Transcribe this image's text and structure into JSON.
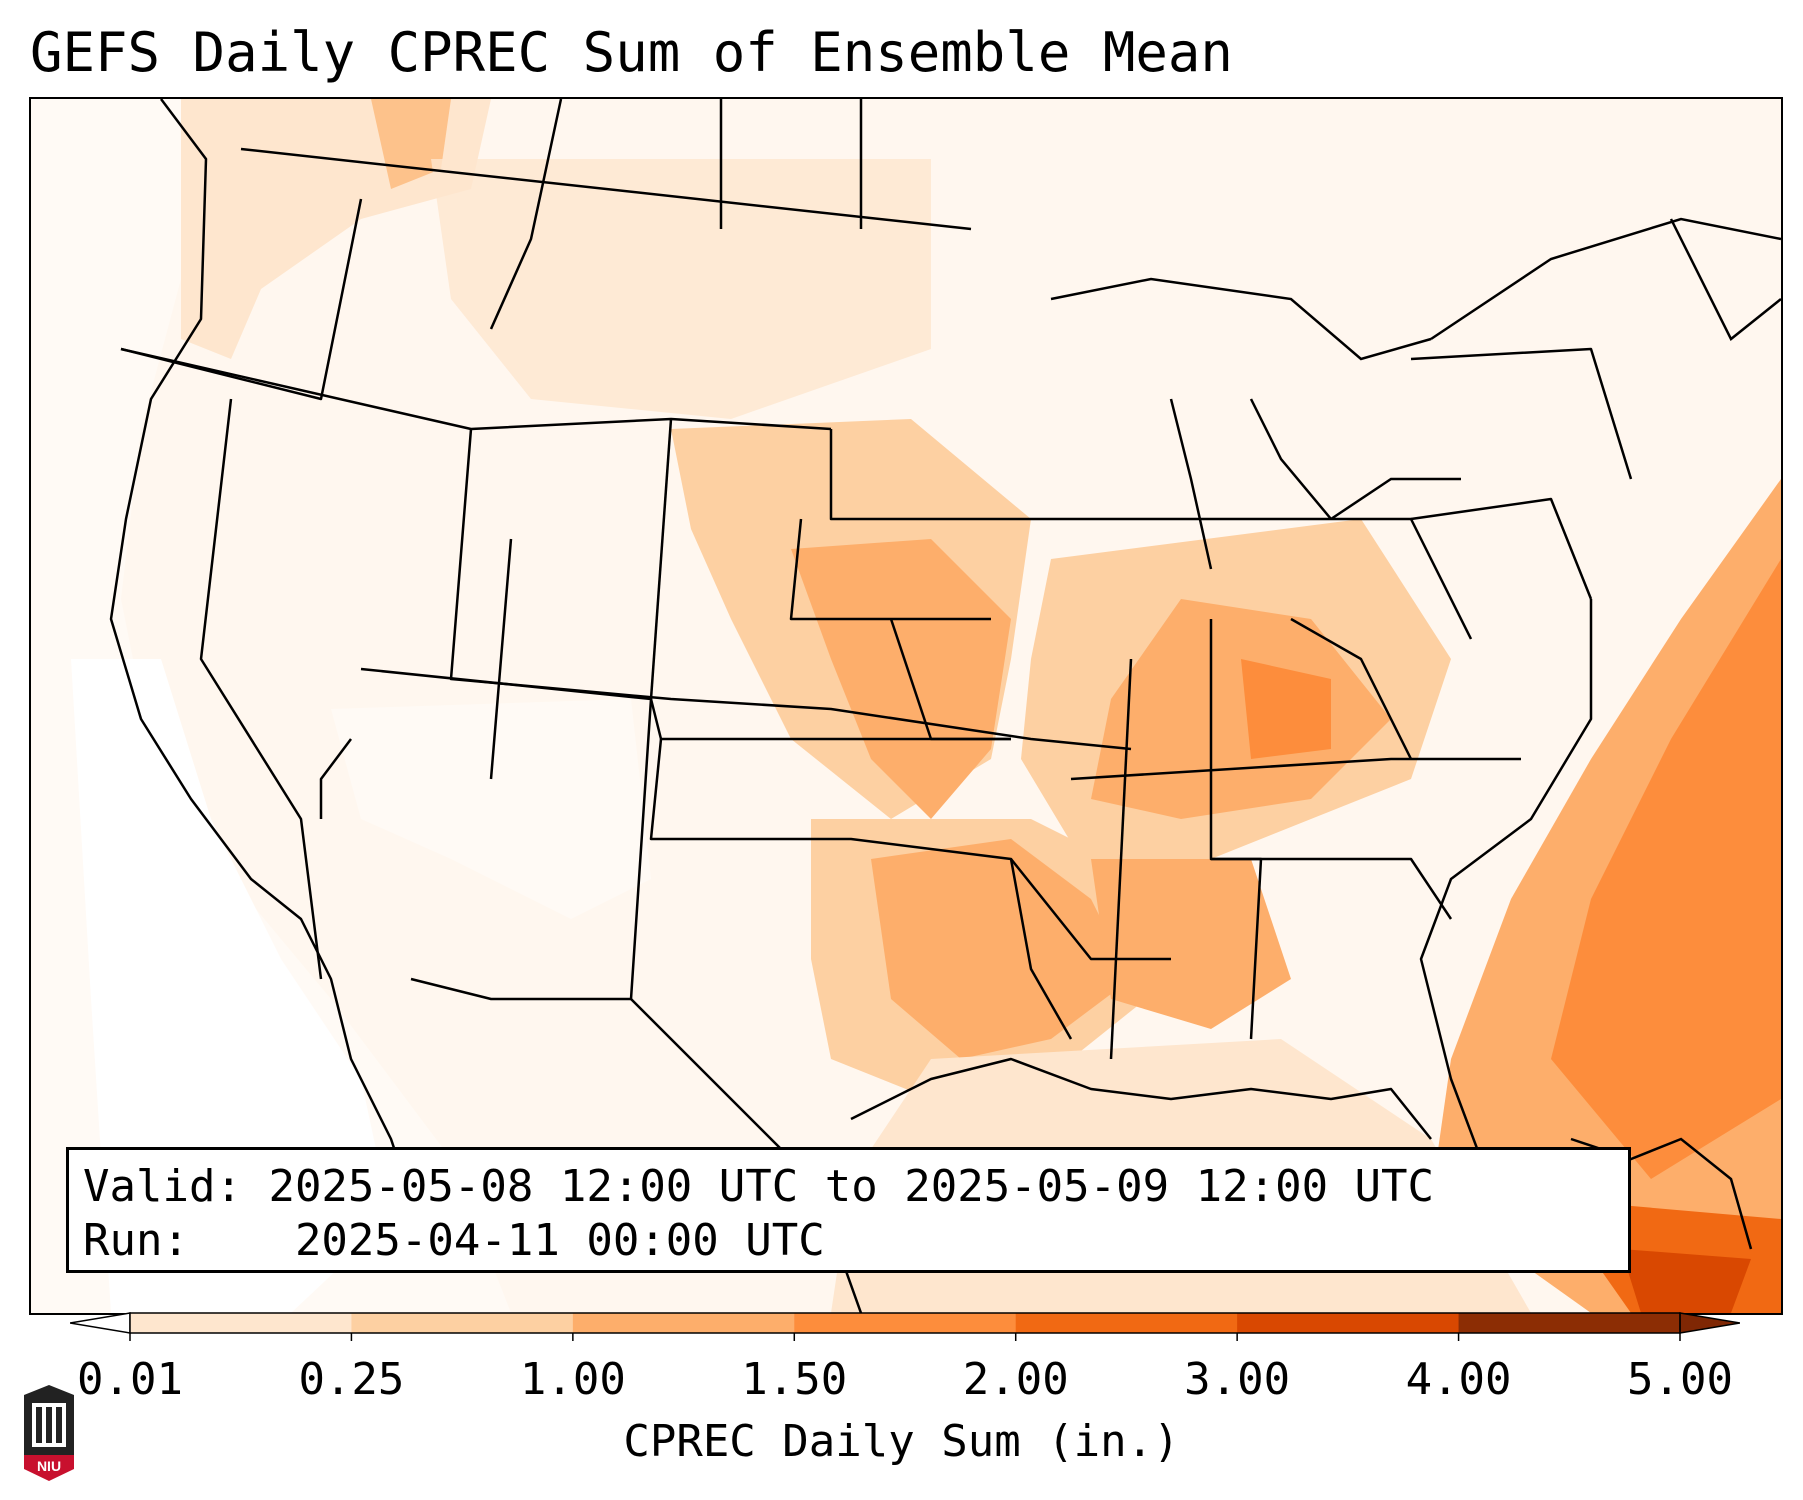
{
  "title": "GEFS Daily CPREC Sum of Ensemble Mean",
  "info": {
    "valid_label": "Valid:",
    "valid_value": "2025-05-08 12:00 UTC to 2025-05-09 12:00 UTC",
    "run_label": "Run:",
    "run_value": "2025-04-11 00:00 UTC"
  },
  "colorbar": {
    "label": "CPREC Daily Sum (in.)",
    "ticks": [
      "0.01",
      "0.25",
      "1.00",
      "1.50",
      "2.00",
      "3.00",
      "4.00",
      "5.00"
    ],
    "colors": [
      "#fff5eb",
      "#fee6ce",
      "#fdd0a2",
      "#fdae6b",
      "#fd8d3c",
      "#f16913",
      "#d94801",
      "#8c2d04"
    ],
    "under_color": "#ffffff",
    "over_color": "#7f2704"
  },
  "logo": {
    "text": "NIU"
  }
}
